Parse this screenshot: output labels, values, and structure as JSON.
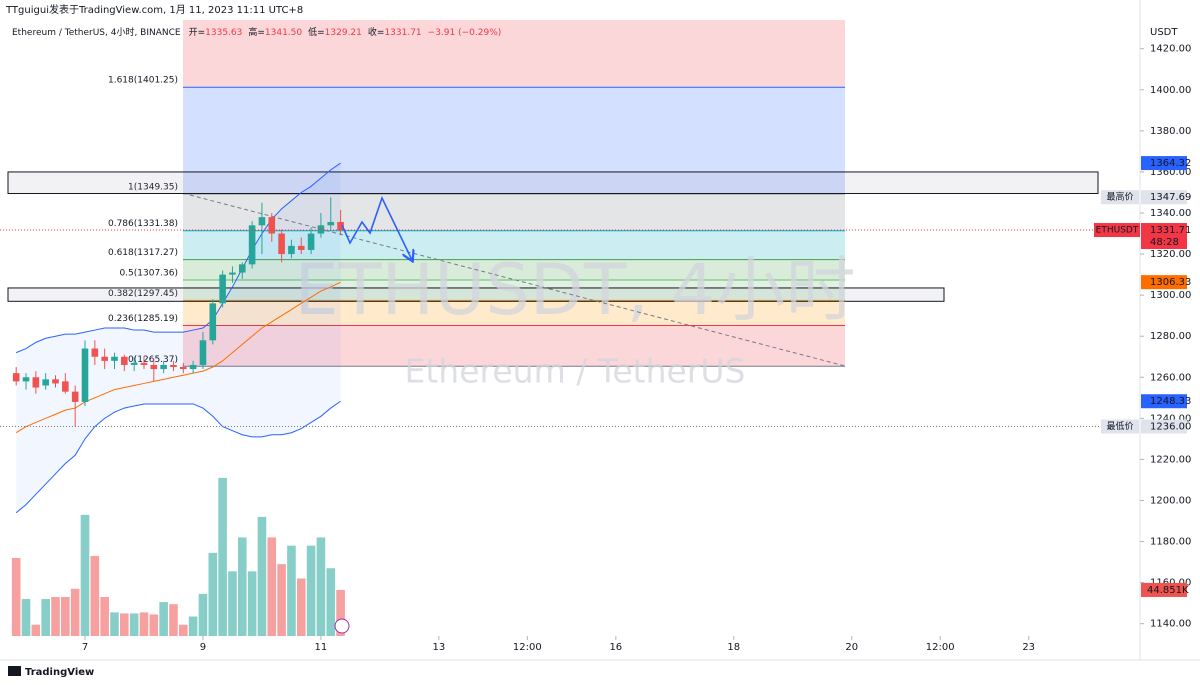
{
  "header": {
    "author_line": "TTguigui发表于TradingView.com, 1月 11, 2023 11:11 UTC+8",
    "symbol": "Ethereum / TetherUS, 4小时, BINANCE",
    "ohlc": [
      {
        "label": "开=",
        "value": "1335.63"
      },
      {
        "label": "高=",
        "value": "1341.50"
      },
      {
        "label": "低=",
        "value": "1329.21"
      },
      {
        "label": "收=",
        "value": "1331.71"
      }
    ],
    "change": "−3.91 (−0.29%)"
  },
  "footer": {
    "brand": "TradingView"
  },
  "chart_data": {
    "type": "candlestick",
    "unit": "USDT",
    "watermark": "ETHUSDT, 4小时",
    "watermark_sub": "Ethereum / TetherUS",
    "up_color": "#26a69a",
    "down_color": "#ef5350",
    "open": [
      1262,
      1258,
      1260,
      1256,
      1259,
      1258,
      1253,
      1248,
      1274,
      1270,
      1268,
      1270,
      1266,
      1267,
      1266,
      1264,
      1266,
      1265,
      1264,
      1266,
      1278,
      1296,
      1310,
      1311,
      1315,
      1334,
      1338,
      1330,
      1320,
      1324,
      1322,
      1330,
      1334,
      1335.63
    ],
    "high": [
      1265,
      1262,
      1263,
      1262,
      1261,
      1262,
      1256,
      1278,
      1278,
      1274,
      1272,
      1271,
      1270,
      1270,
      1269,
      1268,
      1268,
      1267,
      1268,
      1282,
      1298,
      1312,
      1314,
      1316,
      1336,
      1345,
      1340,
      1332,
      1327,
      1328,
      1333,
      1340,
      1347.69,
      1341.5
    ],
    "low": [
      1256,
      1254,
      1252,
      1254,
      1255,
      1252,
      1236,
      1246,
      1266,
      1264,
      1264,
      1263,
      1263,
      1264,
      1258,
      1262,
      1263,
      1262,
      1262,
      1264,
      1276,
      1294,
      1306,
      1308,
      1313,
      1320,
      1326,
      1316,
      1318,
      1320,
      1320,
      1328,
      1332,
      1329.21
    ],
    "close": [
      1258,
      1260,
      1255,
      1259,
      1257,
      1253,
      1248,
      1274,
      1270,
      1268,
      1270,
      1266,
      1267,
      1266,
      1264,
      1266,
      1265,
      1264,
      1266,
      1278,
      1296,
      1310,
      1311,
      1315,
      1334,
      1338,
      1330,
      1320,
      1324,
      1322,
      1330,
      1334,
      1335.63,
      1331.71
    ],
    "bands": {
      "upper": [
        1272,
        1274,
        1277,
        1279,
        1280,
        1281,
        1281,
        1282,
        1283,
        1284,
        1284,
        1284,
        1283,
        1283,
        1282,
        1282,
        1282,
        1282,
        1283,
        1284,
        1288,
        1296,
        1304,
        1313,
        1322,
        1330,
        1337,
        1342,
        1346,
        1350,
        1353,
        1357,
        1361,
        1364.32
      ],
      "middle": [
        1233,
        1236,
        1238,
        1240,
        1242,
        1244,
        1245,
        1248,
        1250,
        1252,
        1254,
        1255,
        1256,
        1257,
        1258,
        1259,
        1260,
        1261,
        1262,
        1263,
        1265,
        1268,
        1272,
        1276,
        1280,
        1284,
        1287,
        1290,
        1293,
        1296,
        1299,
        1302,
        1304,
        1306.33
      ],
      "lower": [
        1194,
        1198,
        1203,
        1208,
        1213,
        1218,
        1222,
        1230,
        1236,
        1240,
        1243,
        1245,
        1246,
        1247,
        1247,
        1247,
        1247,
        1247,
        1247,
        1245,
        1241,
        1236,
        1234,
        1232,
        1231,
        1231,
        1232,
        1232,
        1233,
        1235,
        1238,
        1241,
        1245,
        1248.33
      ],
      "upper_color": "#2962ff",
      "middle_color": "#ff6d00"
    },
    "volume": {
      "values": [
        76,
        36,
        11,
        36,
        38,
        38,
        46,
        118,
        78,
        38,
        23,
        22,
        22,
        23,
        21,
        33,
        31,
        11,
        19,
        41,
        81,
        154,
        63,
        96,
        63,
        116,
        96,
        70,
        88,
        56,
        88,
        96,
        66,
        44.851
      ],
      "last_label": "44.851K",
      "ylim": [
        0,
        600
      ]
    },
    "ylim": [
      1134,
      1434
    ],
    "yticks": [
      {
        "value": 1140,
        "label": "1140.00"
      },
      {
        "value": 1160,
        "label": "1160.00"
      },
      {
        "value": 1180,
        "label": "1180.00"
      },
      {
        "value": 1200,
        "label": "1200.00"
      },
      {
        "value": 1220,
        "label": "1220.00"
      },
      {
        "value": 1240,
        "label": "1240.00"
      },
      {
        "value": 1260,
        "label": "1260.00"
      },
      {
        "value": 1280,
        "label": "1280.00"
      },
      {
        "value": 1300,
        "label": "1300.00"
      },
      {
        "value": 1320,
        "label": "1320.00"
      },
      {
        "value": 1340,
        "label": "1340.00"
      },
      {
        "value": 1360,
        "label": "1360.00"
      },
      {
        "value": 1380,
        "label": "1380.00"
      },
      {
        "value": 1400,
        "label": "1400.00"
      },
      {
        "value": 1420,
        "label": "1420.00"
      }
    ],
    "xticks": [
      {
        "value": 7,
        "label": "7"
      },
      {
        "value": 19,
        "label": "9"
      },
      {
        "value": 31,
        "label": "11"
      },
      {
        "value": 43,
        "label": "13"
      },
      {
        "value": 52,
        "label": "12:00"
      },
      {
        "value": 61,
        "label": "16"
      },
      {
        "value": 73,
        "label": "18"
      },
      {
        "value": 85,
        "label": "20"
      },
      {
        "value": 94,
        "label": "12:00"
      },
      {
        "value": 103,
        "label": "23"
      }
    ],
    "fib_levels": [
      {
        "label": "1.618(1401.25)",
        "value": 1401.25,
        "color": "#2962ff"
      },
      {
        "label": "1(1349.35)",
        "value": 1349.35,
        "color": "#787b86"
      },
      {
        "label": "0.786(1331.38)",
        "value": 1331.38,
        "color": "#00acc1"
      },
      {
        "label": "0.618(1317.27)",
        "value": 1317.27,
        "color": "#43a047"
      },
      {
        "label": "0.5(1307.36)",
        "value": 1307.36,
        "color": "#66bb6a"
      },
      {
        "label": "0.382(1297.45)",
        "value": 1297.45,
        "color": "#ff9800"
      },
      {
        "label": "0.236(1285.19)",
        "value": 1285.19,
        "color": "#f23645"
      },
      {
        "label": "0(1265.37)",
        "value": 1265.37,
        "color": "#787b86"
      }
    ],
    "rectangles": [
      [
        1360,
        1349.5
      ],
      [
        1303.5,
        1297
      ]
    ],
    "price_labels": [
      {
        "value": 1364.32,
        "label": "1364.32",
        "color": "#2962ff"
      },
      {
        "value": 1347.69,
        "label": "1347.69",
        "color": "#e0e3eb",
        "note": "最高价"
      },
      {
        "value": 1331.71,
        "label": "1331.71",
        "color": "#f23645",
        "name": "ETHUSDT",
        "countdown": "48:28"
      },
      {
        "value": 1306.33,
        "label": "1306.33",
        "color": "#ff6d00"
      },
      {
        "value": 1248.33,
        "label": "1248.33",
        "color": "#2962ff"
      },
      {
        "value": 1236,
        "label": "1236.00",
        "color": "#e0e3eb",
        "note": "最低价"
      }
    ]
  }
}
